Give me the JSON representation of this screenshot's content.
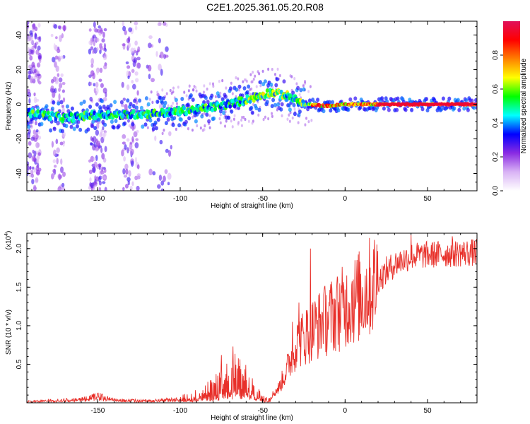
{
  "title": "C2E1.2025.361.05.20.R08",
  "colors": {
    "signal": "#e8302a",
    "axis": "#000000",
    "frame": "#000000"
  },
  "chart_data": [
    {
      "type": "heatmap",
      "xlabel": "Height of straight line (km)",
      "ylabel": "Frequency (Hz)",
      "xlim": [
        -193,
        80
      ],
      "ylim": [
        -50,
        48
      ],
      "xticks": [
        -150,
        -100,
        -50,
        0,
        50
      ],
      "xtick_labels": [
        "-150",
        "-100",
        "-50",
        "0",
        "50"
      ],
      "yticks": [
        -40,
        -20,
        0,
        20,
        40
      ],
      "ytick_labels": [
        "-40",
        "-20",
        "0",
        "20",
        "40"
      ],
      "ridge": [
        {
          "x": -190,
          "y": -5
        },
        {
          "x": -170,
          "y": -8
        },
        {
          "x": -150,
          "y": -6
        },
        {
          "x": -130,
          "y": -6
        },
        {
          "x": -110,
          "y": -5
        },
        {
          "x": -90,
          "y": -3
        },
        {
          "x": -70,
          "y": 0
        },
        {
          "x": -55,
          "y": 4
        },
        {
          "x": -45,
          "y": 7
        },
        {
          "x": -35,
          "y": 5
        },
        {
          "x": -25,
          "y": 0
        },
        {
          "x": -10,
          "y": -1
        },
        {
          "x": 0,
          "y": 0
        },
        {
          "x": 20,
          "y": 0
        },
        {
          "x": 50,
          "y": 0
        },
        {
          "x": 80,
          "y": 0
        }
      ],
      "colorbar": {
        "label": "Normalized spectral amplitude",
        "range": [
          0,
          1
        ],
        "ticks": [
          0.0,
          0.2,
          0.4,
          0.6,
          0.8
        ],
        "tick_labels": [
          "0.0",
          "0.2",
          "0.4",
          "0.6",
          "0.8"
        ],
        "colors": [
          "#ffffff",
          "#d9b3f5",
          "#8a2be2",
          "#0000ff",
          "#00ffff",
          "#00ff00",
          "#ffff00",
          "#ff8000",
          "#ff0000",
          "#e0105a"
        ]
      }
    },
    {
      "type": "line",
      "xlabel": "Height of straight line (km)",
      "ylabel": "SNR (10 * v/v)",
      "exponent_label": "(x10",
      "exponent_power": "4",
      "exponent_close": ")",
      "xlim": [
        -193,
        80
      ],
      "ylim": [
        0,
        2.2
      ],
      "xticks": [
        -150,
        -100,
        -50,
        0,
        50
      ],
      "xtick_labels": [
        "-150",
        "-100",
        "-50",
        "0",
        "50"
      ],
      "yticks": [
        0.5,
        1.0,
        1.5,
        2.0
      ],
      "ytick_labels": [
        "0.5",
        "1.0",
        "1.5",
        "2.0"
      ],
      "envelope": [
        {
          "x": -193,
          "y": 0.02
        },
        {
          "x": -170,
          "y": 0.04
        },
        {
          "x": -160,
          "y": 0.05
        },
        {
          "x": -150,
          "y": 0.1
        },
        {
          "x": -140,
          "y": 0.04
        },
        {
          "x": -120,
          "y": 0.03
        },
        {
          "x": -100,
          "y": 0.05
        },
        {
          "x": -90,
          "y": 0.1
        },
        {
          "x": -80,
          "y": 0.18
        },
        {
          "x": -72,
          "y": 0.3
        },
        {
          "x": -65,
          "y": 0.35
        },
        {
          "x": -60,
          "y": 0.3
        },
        {
          "x": -55,
          "y": 0.2
        },
        {
          "x": -50,
          "y": 0.08
        },
        {
          "x": -45,
          "y": 0.08
        },
        {
          "x": -40,
          "y": 0.2
        },
        {
          "x": -35,
          "y": 0.45
        },
        {
          "x": -30,
          "y": 0.75
        },
        {
          "x": -20,
          "y": 0.95
        },
        {
          "x": -10,
          "y": 1.1
        },
        {
          "x": 0,
          "y": 1.25
        },
        {
          "x": 10,
          "y": 1.4
        },
        {
          "x": 20,
          "y": 1.6
        },
        {
          "x": 30,
          "y": 1.8
        },
        {
          "x": 40,
          "y": 1.9
        },
        {
          "x": 50,
          "y": 1.92
        },
        {
          "x": 60,
          "y": 1.93
        },
        {
          "x": 70,
          "y": 1.94
        },
        {
          "x": 80,
          "y": 1.95
        }
      ],
      "spikes": [
        {
          "x": -75,
          "y": 0.62
        },
        {
          "x": -68,
          "y": 0.73
        },
        {
          "x": -32,
          "y": 1.05
        },
        {
          "x": -28,
          "y": 1.3
        },
        {
          "x": -23,
          "y": 1.2
        },
        {
          "x": -21,
          "y": 2.0
        },
        {
          "x": -13,
          "y": 1.4
        },
        {
          "x": -5,
          "y": 1.55
        },
        {
          "x": 5,
          "y": 1.6
        },
        {
          "x": 25,
          "y": 1.9
        },
        {
          "x": 40,
          "y": 2.18
        },
        {
          "x": 65,
          "y": 2.16
        }
      ]
    }
  ]
}
